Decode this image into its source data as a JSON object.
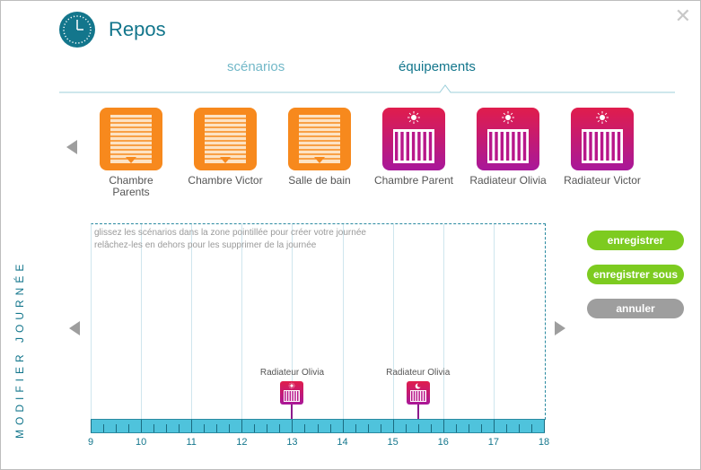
{
  "header": {
    "title": "Repos",
    "close_glyph": "✕"
  },
  "tabs": [
    {
      "label": "scénarios",
      "active": false
    },
    {
      "label": "équipements",
      "active": true
    }
  ],
  "equipments": [
    {
      "label": "Chambre Parents",
      "icon": "shutter-icon",
      "color": "#f7891d"
    },
    {
      "label": "Chambre Victor",
      "icon": "shutter-icon",
      "color": "#f7891d"
    },
    {
      "label": "Salle de bain",
      "icon": "shutter-icon",
      "color": "#f7891d"
    },
    {
      "label": "Chambre Parent",
      "icon": "radiator-sun-icon",
      "color": "#d01c6a"
    },
    {
      "label": "Radiateur Olivia",
      "icon": "radiator-sun-icon",
      "color": "#d01c6a"
    },
    {
      "label": "Radiateur Victor",
      "icon": "radiator-sun-icon",
      "color": "#d01c6a"
    }
  ],
  "side_label": "MODIFIER JOURNÉE",
  "timeline": {
    "hint_line1": "glissez les scénarios dans la zone pointillée pour créer votre journée",
    "hint_line2": "relâchez-les en dehors pour les supprimer de la journée",
    "hours": [
      "9",
      "10",
      "11",
      "12",
      "13",
      "14",
      "15",
      "16",
      "17",
      "18"
    ],
    "events": [
      {
        "label": "Radiateur Olivia",
        "hour": 13,
        "icon": "sun-icon"
      },
      {
        "label": "Radiateur Olivia",
        "hour": 15.5,
        "icon": "moon-icon"
      }
    ]
  },
  "actions": {
    "save": "enregistrer",
    "save_as": "enregistrer sous",
    "cancel": "annuler"
  }
}
